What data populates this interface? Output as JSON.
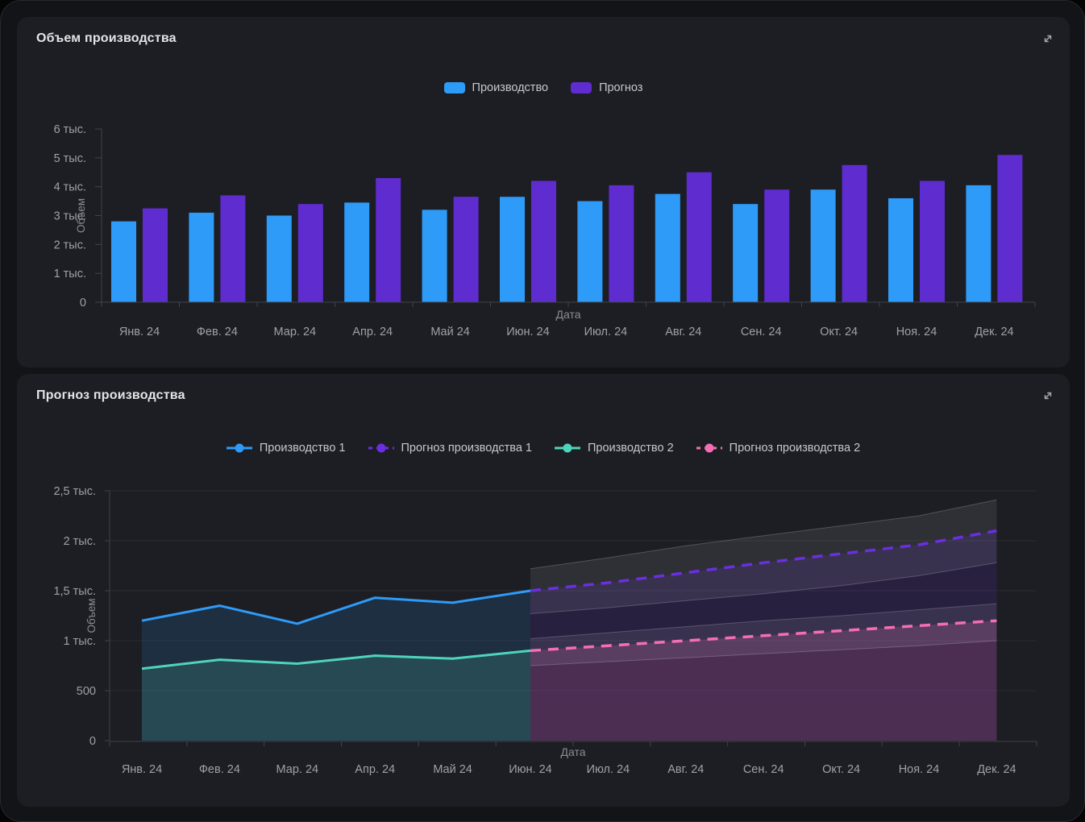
{
  "page": {
    "background": "#131418",
    "card_background": "#1d1e23"
  },
  "cards": [
    {
      "title": "Объем производства",
      "expand_icon": "expand-icon"
    },
    {
      "title": "Прогноз производства",
      "expand_icon": "expand-icon"
    }
  ],
  "chart_data": [
    {
      "type": "bar",
      "title": "Объем производства",
      "categories": [
        "Янв. 24",
        "Фев. 24",
        "Мар. 24",
        "Апр. 24",
        "Май 24",
        "Июн. 24",
        "Июл. 24",
        "Авг. 24",
        "Сен. 24",
        "Окт. 24",
        "Ноя. 24",
        "Дек. 24"
      ],
      "series": [
        {
          "name": "Производство",
          "color": "#2E9BF8",
          "values": [
            2800,
            3100,
            3000,
            3450,
            3200,
            3650,
            3500,
            3750,
            3400,
            3900,
            3600,
            4050
          ]
        },
        {
          "name": "Прогноз",
          "color": "#5E2CCF",
          "values": [
            3250,
            3700,
            3400,
            4300,
            3650,
            4200,
            4050,
            4500,
            3900,
            4750,
            4200,
            5100
          ]
        }
      ],
      "xlabel": "Дата",
      "ylabel": "Объем",
      "ylim": [
        0,
        6000
      ],
      "y_tick_step": 1000,
      "y_tick_labels": [
        "0",
        "1 тыс.",
        "2 тыс.",
        "3 тыс.",
        "4 тыс.",
        "5 тыс.",
        "6 тыс."
      ],
      "grid": false,
      "legend_position": "top-center"
    },
    {
      "type": "line",
      "title": "Прогноз производства",
      "categories": [
        "Янв. 24",
        "Фев. 24",
        "Мар. 24",
        "Апр. 24",
        "Май 24",
        "Июн. 24",
        "Июл. 24",
        "Авг. 24",
        "Сен. 24",
        "Окт. 24",
        "Ноя. 24",
        "Дек. 24"
      ],
      "series": [
        {
          "name": "Производство 1",
          "color": "#2E9BF8",
          "line_style": "solid",
          "start_index": 0,
          "values": [
            1200,
            1350,
            1170,
            1430,
            1380,
            1500
          ]
        },
        {
          "name": "Прогноз производства 1",
          "color": "#6A2EE3",
          "line_style": "dashed",
          "start_index": 5,
          "values": [
            1500,
            1580,
            1680,
            1780,
            1870,
            1960,
            2100
          ],
          "band_upper": [
            1720,
            1830,
            1950,
            2050,
            2150,
            2250,
            2410
          ],
          "band_lower": [
            1270,
            1330,
            1400,
            1470,
            1550,
            1650,
            1780
          ]
        },
        {
          "name": "Производство 2",
          "color": "#4FD4BC",
          "line_style": "solid",
          "start_index": 0,
          "values": [
            720,
            810,
            770,
            850,
            820,
            900
          ]
        },
        {
          "name": "Прогноз производства 2",
          "color": "#F56EB3",
          "line_style": "dashed",
          "start_index": 5,
          "values": [
            900,
            950,
            1000,
            1050,
            1100,
            1150,
            1200
          ],
          "band_upper": [
            1020,
            1080,
            1140,
            1200,
            1250,
            1310,
            1370
          ],
          "band_lower": [
            750,
            790,
            830,
            870,
            910,
            950,
            1000
          ]
        }
      ],
      "xlabel": "Дата",
      "ylabel": "Объем",
      "ylim": [
        0,
        2500
      ],
      "y_tick_step": 500,
      "y_tick_labels": [
        "0",
        "500",
        "1 тыс.",
        "1,5 тыс.",
        "2 тыс.",
        "2,5 тыс."
      ],
      "grid": true,
      "legend_position": "top-center"
    }
  ]
}
